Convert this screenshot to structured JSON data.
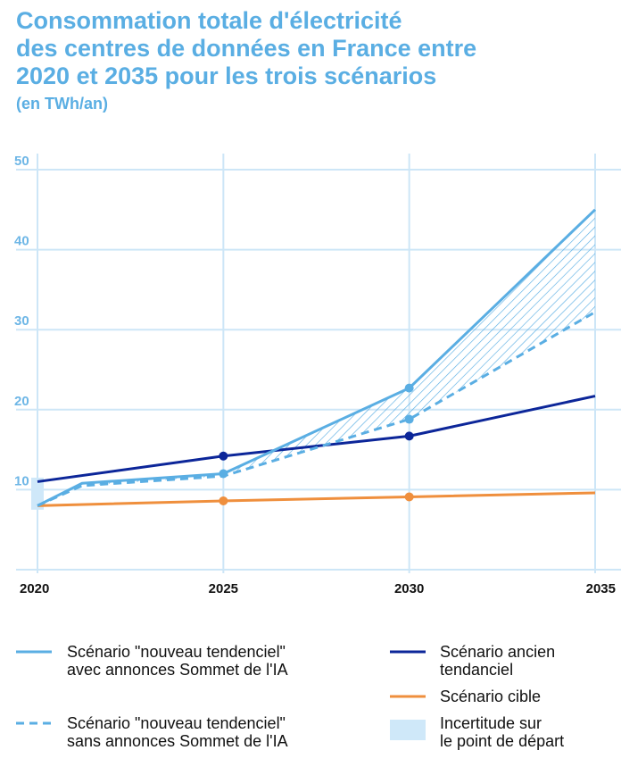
{
  "chart_data": {
    "type": "line",
    "title_lines": [
      "Consommation totale d'électricité",
      "des centres de données en France entre",
      "2020 et 2035 pour les trois scénarios"
    ],
    "unit": "(en TWh/an)",
    "x_ticks": [
      "2020",
      "2025",
      "2030",
      "2035"
    ],
    "y_ticks": [
      "10",
      "20",
      "30",
      "40",
      "50"
    ],
    "xlim": [
      2020,
      2035
    ],
    "ylim": [
      0,
      50
    ],
    "colors": {
      "light_blue": "#5aaee3",
      "dark_blue": "#0c2699",
      "orange": "#ef8f3d",
      "uncertainty": "#cfe8f9",
      "grid": "#cde6f7"
    },
    "series": [
      {
        "id": "new_with",
        "name_lines": [
          "Scénario \"nouveau tendenciel\"",
          "avec annonces Sommet de l'IA"
        ],
        "style": "solid",
        "color": "#5aaee3",
        "x": [
          2020,
          2021.2,
          2025,
          2030,
          2035
        ],
        "y": [
          8,
          10.8,
          12,
          22.7,
          45
        ],
        "markers": [
          2025,
          2030
        ]
      },
      {
        "id": "new_without",
        "name_lines": [
          "Scénario \"nouveau tendenciel\"",
          "sans annonces Sommet de l'IA"
        ],
        "style": "dashed",
        "color": "#5aaee3",
        "x": [
          2020,
          2021.2,
          2025,
          2030,
          2035
        ],
        "y": [
          8,
          10.5,
          11.7,
          18.8,
          32.2
        ],
        "markers": [
          2030
        ]
      },
      {
        "id": "old_trend",
        "name_lines": [
          "Scénario ancien",
          "tendanciel"
        ],
        "style": "solid",
        "color": "#0c2699",
        "x": [
          2020,
          2025,
          2030,
          2035
        ],
        "y": [
          11,
          14.2,
          16.7,
          21.7
        ],
        "markers": [
          2025,
          2030
        ]
      },
      {
        "id": "target",
        "name_lines": [
          "Scénario cible"
        ],
        "style": "solid",
        "color": "#ef8f3d",
        "x": [
          2020,
          2025,
          2030,
          2035
        ],
        "y": [
          8,
          8.6,
          9.1,
          9.6
        ],
        "markers": [
          2025,
          2030
        ]
      }
    ],
    "uncertainty": {
      "name_lines": [
        "Incertitude sur",
        "le point de départ"
      ],
      "x": 2020,
      "y_range": [
        7.5,
        11.5
      ]
    },
    "hatched_area_between": [
      "new_with",
      "new_without"
    ]
  }
}
